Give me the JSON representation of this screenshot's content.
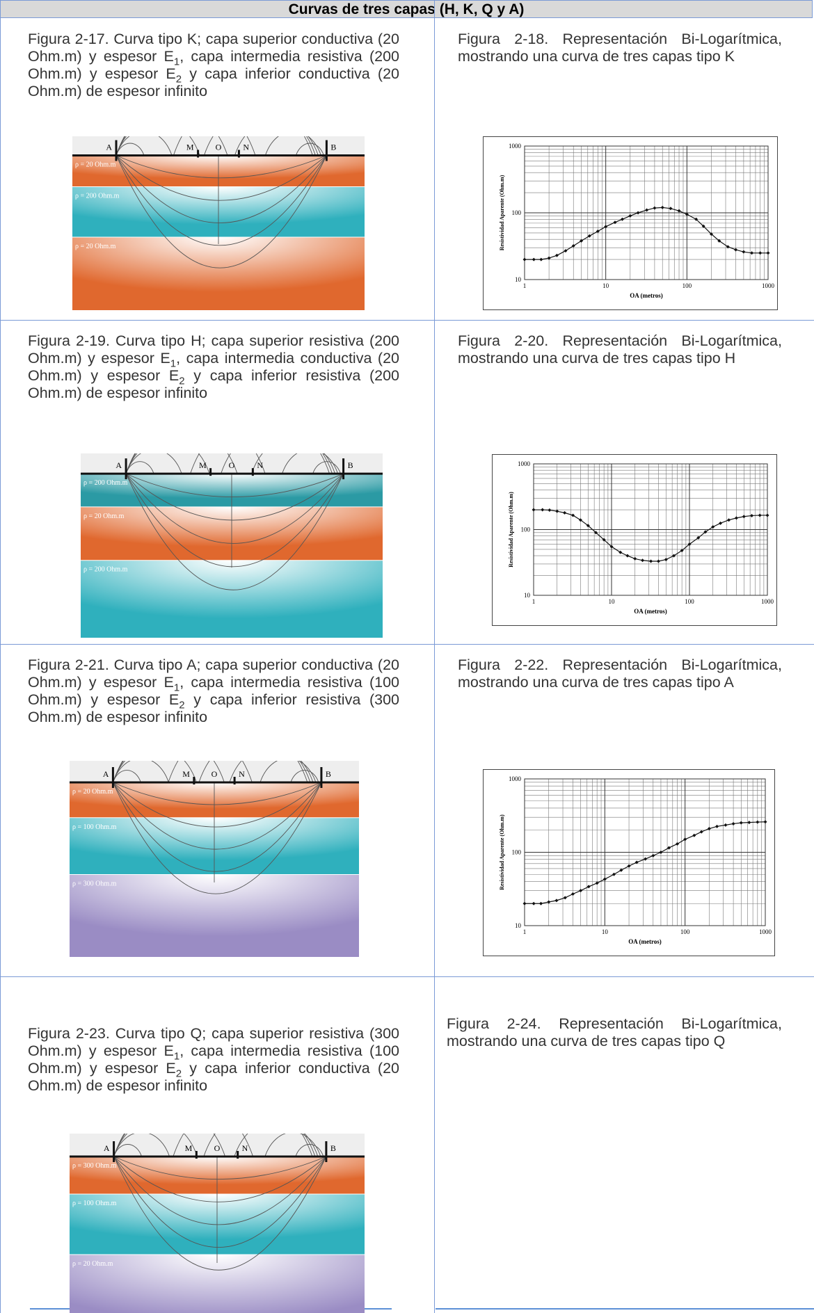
{
  "header": "Curvas de tres capas (H, K, Q y A)",
  "rows": [
    {
      "left": {
        "caption": [
          "Figura 2-17. Curva tipo K; capa superior conductiva (20 Ohm.m) y espesor E",
          "1",
          ", capa intermedia resistiva (200 Ohm.m) y espesor E",
          "2",
          " y capa inferior conductiva (20 Ohm.m) de espesor infinito"
        ],
        "diagram": {
          "electrodes": [
            "A",
            "M",
            "O",
            "N",
            "B"
          ],
          "layers": [
            "ρ = 20 Ohm.m",
            "ρ = 200 Ohm.m",
            "ρ = 20 Ohm.m"
          ]
        }
      },
      "right": {
        "caption": [
          "Figura 2-18. Representación Bi-Logarítmica, mostrando una curva de tres capas tipo K"
        ],
        "plot": {
          "type": "line",
          "ylabel": "Resistividad Aparente (Ohm.m)",
          "xlabel": "OA (metros)",
          "log_scale": true,
          "xlim": [
            1,
            1000
          ],
          "ylim": [
            10,
            1000
          ],
          "xticks": [
            1,
            10,
            100,
            1000
          ],
          "yticks": [
            10,
            100,
            1000
          ],
          "x": [
            1,
            1.3,
            1.6,
            2,
            2.5,
            3.2,
            4,
            5,
            6.3,
            8,
            10,
            13,
            16,
            20,
            25,
            32,
            40,
            50,
            63,
            80,
            100,
            130,
            160,
            200,
            250,
            320,
            400,
            500,
            630,
            800,
            1000
          ],
          "y": [
            20,
            20,
            20,
            21,
            23,
            27,
            32,
            38,
            45,
            53,
            62,
            72,
            80,
            90,
            100,
            110,
            118,
            120,
            116,
            107,
            95,
            80,
            63,
            48,
            38,
            31,
            28,
            26,
            25,
            25,
            25
          ]
        }
      }
    },
    {
      "left": {
        "caption": [
          "Figura 2-19. Curva tipo H; capa superior resistiva (200 Ohm.m) y espesor E",
          "1",
          ", capa intermedia conductiva (20 Ohm.m) y espesor E",
          "2",
          " y capa inferior resistiva (200 Ohm.m) de espesor infinito"
        ],
        "diagram": {
          "electrodes": [
            "A",
            "M",
            "O",
            "N",
            "B"
          ],
          "layers": [
            "ρ = 200 Ohm.m",
            "ρ = 20 Ohm.m",
            "ρ = 200 Ohm.m"
          ]
        }
      },
      "right": {
        "caption": [
          "Figura 2-20. Representación Bi-Logarítmica, mostrando una curva de tres capas tipo H"
        ],
        "plot": {
          "type": "line",
          "ylabel": "Resistividad Aparente (Ohm.m)",
          "xlabel": "OA (metros)",
          "log_scale": true,
          "xlim": [
            1,
            1000
          ],
          "ylim": [
            10,
            1000
          ],
          "xticks": [
            1,
            10,
            100,
            1000
          ],
          "yticks": [
            10,
            100,
            1000
          ],
          "x": [
            1,
            1.3,
            1.6,
            2,
            2.5,
            3.2,
            4,
            5,
            6.3,
            8,
            10,
            13,
            16,
            20,
            25,
            32,
            40,
            50,
            63,
            80,
            100,
            130,
            160,
            200,
            250,
            320,
            400,
            500,
            630,
            800,
            1000
          ],
          "y": [
            200,
            200,
            198,
            190,
            180,
            165,
            140,
            115,
            90,
            70,
            55,
            45,
            40,
            36,
            34,
            33,
            33,
            35,
            40,
            48,
            60,
            75,
            92,
            110,
            125,
            140,
            150,
            158,
            163,
            165,
            165
          ]
        }
      }
    },
    {
      "left": {
        "caption": [
          "Figura 2-21. Curva tipo A; capa superior conductiva (20 Ohm.m) y espesor E",
          "1",
          ", capa intermedia resistiva (100 Ohm.m) y espesor E",
          "2",
          " y capa inferior resistiva (300 Ohm.m) de espesor infinito"
        ],
        "diagram": {
          "electrodes": [
            "A",
            "M",
            "O",
            "N",
            "B"
          ],
          "layers": [
            "ρ = 20 Ohm.m",
            "ρ = 100 Ohm.m",
            "ρ = 300 Ohm.m"
          ]
        }
      },
      "right": {
        "caption": [
          "Figura 2-22. Representación Bi-Logarítmica, mostrando una curva de tres capas tipo A"
        ],
        "plot": {
          "type": "line",
          "ylabel": "Resistividad Aparente (Ohm.m)",
          "xlabel": "OA (metros)",
          "log_scale": true,
          "xlim": [
            1,
            1000
          ],
          "ylim": [
            10,
            1000
          ],
          "xticks": [
            1,
            10,
            100,
            1000
          ],
          "yticks": [
            10,
            100,
            1000
          ],
          "x": [
            1,
            1.3,
            1.6,
            2,
            2.5,
            3.2,
            4,
            5,
            6.3,
            8,
            10,
            13,
            16,
            20,
            25,
            32,
            40,
            50,
            63,
            80,
            100,
            130,
            160,
            200,
            250,
            320,
            400,
            500,
            630,
            800,
            1000
          ],
          "y": [
            20,
            20,
            20,
            21,
            22,
            24,
            27,
            30,
            34,
            38,
            43,
            50,
            57,
            65,
            73,
            81,
            90,
            100,
            115,
            130,
            150,
            170,
            190,
            210,
            225,
            235,
            245,
            252,
            255,
            258,
            260
          ]
        }
      }
    },
    {
      "left": {
        "caption": [
          "Figura 2-23. Curva tipo Q; capa superior resistiva (300 Ohm.m) y espesor E",
          "1",
          ", capa intermedia resistiva (100 Ohm.m) y espesor E",
          "2",
          " y capa inferior conductiva (20 Ohm.m) de espesor infinito"
        ],
        "diagram": {
          "electrodes": [
            "A",
            "M",
            "O",
            "N",
            "B"
          ],
          "layers": [
            "ρ = 300 Ohm.m",
            "ρ = 100 Ohm.m",
            "ρ = 20 Ohm.m"
          ]
        }
      },
      "right": {
        "caption": [
          "Figura 2-24. Representación Bi-Logarítmica, mostrando una curva de tres capas tipo Q"
        ]
      }
    }
  ]
}
